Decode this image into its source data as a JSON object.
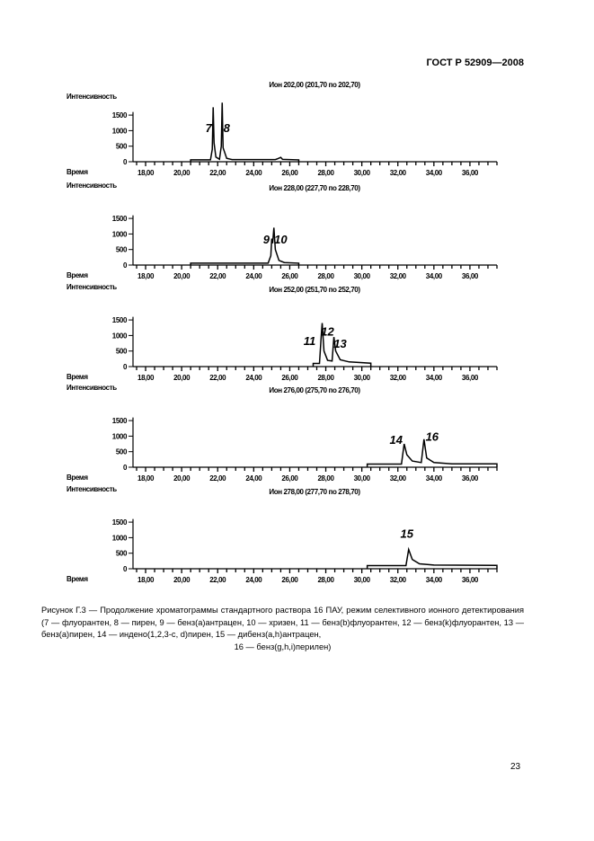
{
  "header": "ГОСТ Р 52909—2008",
  "page_number": "23",
  "caption": {
    "line": "Рисунок Г.3 — Продолжение хроматограммы стандартного раствора 16 ПАУ, режим селективного ионного детектирования (7 — флуорантен, 8 — пирен, 9 — бенз(а)антрацен, 10 — хризен, 11 — бенз(b)флуорантен, 12 — бенз(k)флуорантен, 13 — бенз(а)пирен, 14 — индено(1,2,3-c, d)пирен, 15 — дибенз(a,h)антрацен,",
    "last": "16 — бенз(g,h,i)перилен)"
  },
  "chart_data": [
    {
      "type": "line",
      "title": "Ион 202,00 (201,70 по 202,70)",
      "ylabel": "Интенсивность",
      "xlabel": "Время",
      "xlim": [
        17.3,
        37.5
      ],
      "ylim": [
        0,
        1900
      ],
      "yticks": [
        "0",
        "500",
        "1000",
        "1500"
      ],
      "xticks": [
        "18,00",
        "20,00",
        "22,00",
        "24,00",
        "26,00",
        "28,00",
        "30,00",
        "32,00",
        "34,00",
        "36,00"
      ],
      "trace": [
        [
          20.5,
          0
        ],
        [
          20.5,
          60
        ],
        [
          21.6,
          60
        ],
        [
          21.7,
          400
        ],
        [
          21.75,
          1750
        ],
        [
          21.8,
          600
        ],
        [
          21.9,
          150
        ],
        [
          22.1,
          80
        ],
        [
          22.2,
          500
        ],
        [
          22.25,
          1900
        ],
        [
          22.3,
          450
        ],
        [
          22.5,
          110
        ],
        [
          22.8,
          70
        ],
        [
          25.2,
          70
        ],
        [
          25.3,
          90
        ],
        [
          25.5,
          140
        ],
        [
          25.6,
          75
        ],
        [
          26.5,
          60
        ],
        [
          26.5,
          0
        ]
      ],
      "peaks": [
        {
          "label": "7",
          "x": 21.5,
          "y": 950
        },
        {
          "label": "8",
          "x": 22.5,
          "y": 950
        }
      ]
    },
    {
      "type": "line",
      "title": "Ион 228,00 (227,70 по 228,70)",
      "ylabel": "Интенсивность",
      "xlabel": "Время",
      "xlim": [
        17.3,
        37.5
      ],
      "ylim": [
        0,
        1900
      ],
      "yticks": [
        "0",
        "500",
        "1000",
        "1500"
      ],
      "xticks": [
        "18,00",
        "20,00",
        "22,00",
        "24,00",
        "26,00",
        "28,00",
        "30,00",
        "32,00",
        "34,00",
        "36,00"
      ],
      "trace": [
        [
          20.5,
          0
        ],
        [
          20.5,
          60
        ],
        [
          24.8,
          60
        ],
        [
          24.95,
          300
        ],
        [
          25.0,
          850
        ],
        [
          25.05,
          700
        ],
        [
          25.12,
          1200
        ],
        [
          25.2,
          500
        ],
        [
          25.4,
          150
        ],
        [
          25.7,
          80
        ],
        [
          26.5,
          60
        ],
        [
          26.5,
          0
        ]
      ],
      "peaks": [
        {
          "label": "9",
          "x": 24.7,
          "y": 700
        },
        {
          "label": "10",
          "x": 25.5,
          "y": 700
        }
      ]
    },
    {
      "type": "line",
      "title": "Ион 252,00 (251,70 по 252,70)",
      "ylabel": "Интенсивность",
      "xlabel": "Время",
      "xlim": [
        17.3,
        37.5
      ],
      "ylim": [
        0,
        1900
      ],
      "yticks": [
        "0",
        "500",
        "1000",
        "1500"
      ],
      "xticks": [
        "18,00",
        "20,00",
        "22,00",
        "24,00",
        "26,00",
        "28,00",
        "30,00",
        "32,00",
        "34,00",
        "36,00"
      ],
      "trace": [
        [
          27.3,
          0
        ],
        [
          27.3,
          100
        ],
        [
          27.65,
          100
        ],
        [
          27.75,
          1000
        ],
        [
          27.8,
          1400
        ],
        [
          27.9,
          500
        ],
        [
          28.1,
          200
        ],
        [
          28.35,
          180
        ],
        [
          28.45,
          950
        ],
        [
          28.55,
          500
        ],
        [
          28.8,
          220
        ],
        [
          29.3,
          150
        ],
        [
          30.5,
          110
        ],
        [
          30.5,
          0
        ]
      ],
      "peaks": [
        {
          "label": "11",
          "x": 27.1,
          "y": 700
        },
        {
          "label": "12",
          "x": 28.1,
          "y": 1000
        },
        {
          "label": "13",
          "x": 28.8,
          "y": 600
        }
      ]
    },
    {
      "type": "line",
      "title": "Ион 276,00 (275,70 по 276,70)",
      "ylabel": "Интенсивность",
      "xlabel": "Время",
      "xlim": [
        17.3,
        37.5
      ],
      "ylim": [
        0,
        1900
      ],
      "yticks": [
        "0",
        "500",
        "1000",
        "1500"
      ],
      "xticks": [
        "18,00",
        "20,00",
        "22,00",
        "24,00",
        "26,00",
        "28,00",
        "30,00",
        "32,00",
        "34,00",
        "36,00"
      ],
      "trace": [
        [
          30.3,
          0
        ],
        [
          30.3,
          100
        ],
        [
          32.2,
          100
        ],
        [
          32.35,
          750
        ],
        [
          32.5,
          400
        ],
        [
          32.8,
          200
        ],
        [
          33.3,
          150
        ],
        [
          33.45,
          900
        ],
        [
          33.6,
          300
        ],
        [
          34.0,
          150
        ],
        [
          35.0,
          110
        ],
        [
          37.5,
          110
        ],
        [
          37.5,
          0
        ]
      ],
      "peaks": [
        {
          "label": "14",
          "x": 31.9,
          "y": 750
        },
        {
          "label": "16",
          "x": 33.9,
          "y": 850
        }
      ]
    },
    {
      "type": "line",
      "title": "Ион 278,00 (277,70 по 278,70)",
      "ylabel": "Интенсивность",
      "xlabel": "Время",
      "xlim": [
        17.3,
        37.5
      ],
      "ylim": [
        0,
        1900
      ],
      "yticks": [
        "0",
        "500",
        "1000",
        "1500"
      ],
      "xticks": [
        "18,00",
        "20,00",
        "22,00",
        "24,00",
        "26,00",
        "28,00",
        "30,00",
        "32,00",
        "34,00",
        "36,00"
      ],
      "trace": [
        [
          30.3,
          0
        ],
        [
          30.3,
          100
        ],
        [
          32.45,
          100
        ],
        [
          32.6,
          620
        ],
        [
          32.8,
          300
        ],
        [
          33.2,
          160
        ],
        [
          34.0,
          120
        ],
        [
          37.5,
          110
        ],
        [
          37.5,
          0
        ]
      ],
      "peaks": [
        {
          "label": "15",
          "x": 32.5,
          "y": 1000
        }
      ]
    }
  ]
}
